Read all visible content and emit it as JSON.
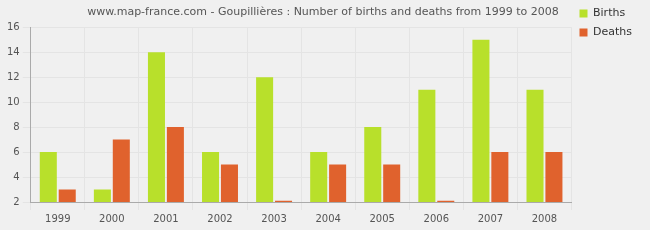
{
  "chart_data": {
    "type": "bar",
    "title": "www.map-france.com - Goupillières : Number of births and deaths from 1999 to 2008",
    "categories": [
      "1999",
      "2000",
      "2001",
      "2002",
      "2003",
      "2004",
      "2005",
      "2006",
      "2007",
      "2008"
    ],
    "series": [
      {
        "name": "Births",
        "color": "#b8e02b",
        "values": [
          6,
          3,
          14,
          6,
          12,
          6,
          8,
          11,
          15,
          11
        ]
      },
      {
        "name": "Deaths",
        "color": "#e0622d",
        "values": [
          3,
          7,
          8,
          5,
          2.1,
          5,
          5,
          2.1,
          6,
          6
        ]
      }
    ],
    "ylim": [
      2,
      16
    ],
    "yticks": [
      2,
      4,
      6,
      8,
      10,
      12,
      14,
      16
    ],
    "grid": true,
    "legend": "upper right"
  }
}
